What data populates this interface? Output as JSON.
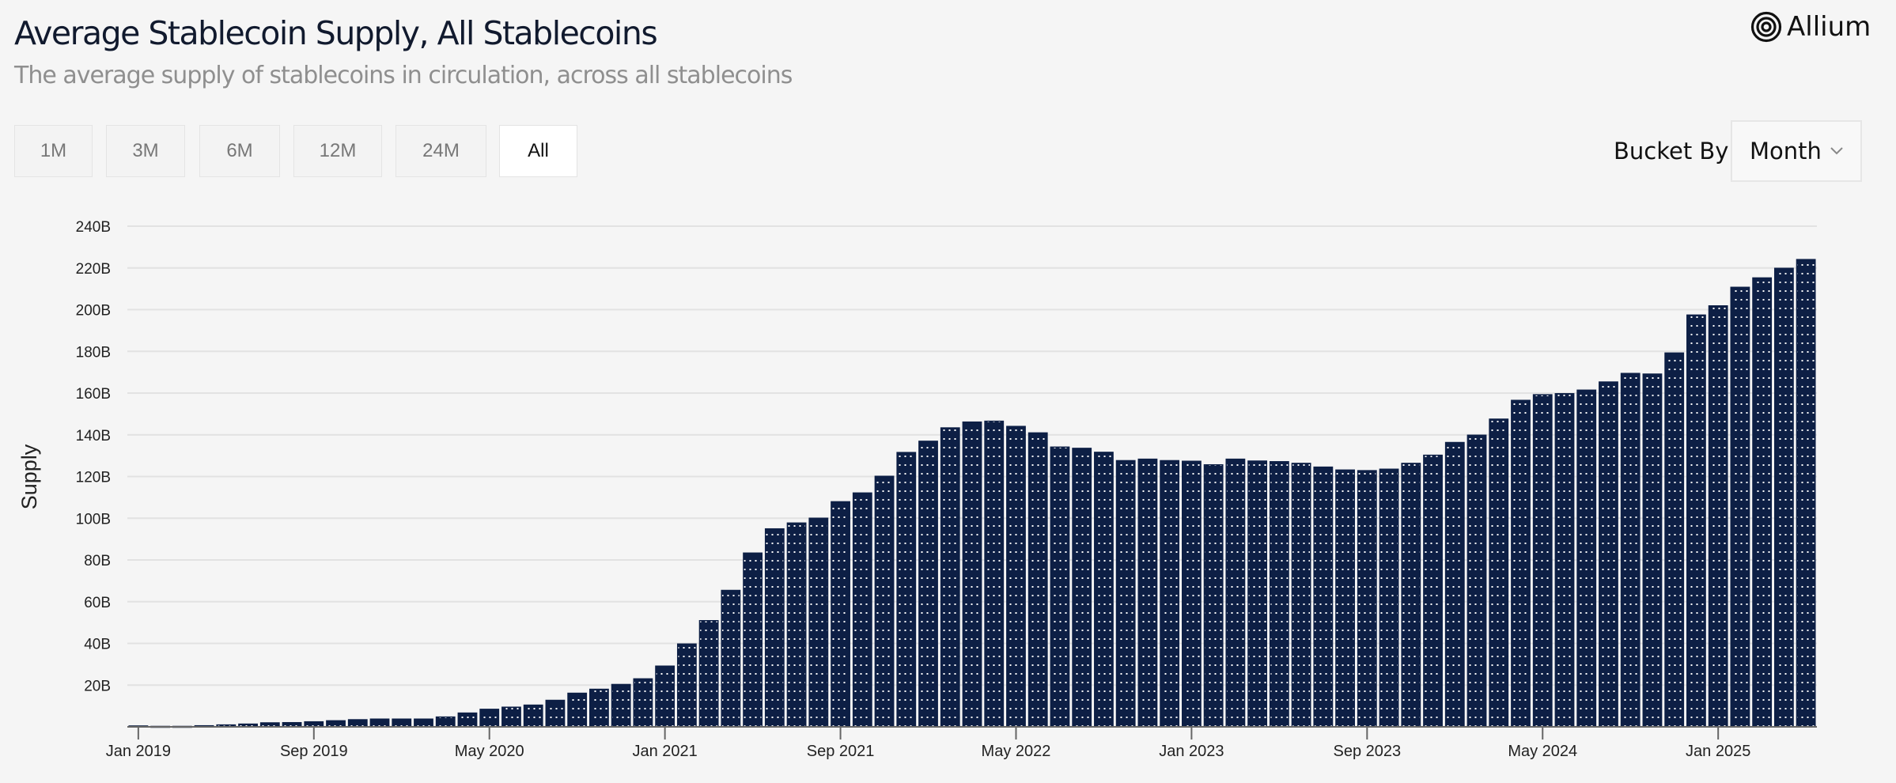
{
  "header": {
    "title": "Average Stablecoin Supply, All Stablecoins",
    "subtitle": "The average supply of stablecoins in circulation, across all stablecoins",
    "logo_text": "Allium"
  },
  "range_buttons": [
    {
      "label": "1M",
      "active": false
    },
    {
      "label": "3M",
      "active": false
    },
    {
      "label": "6M",
      "active": false
    },
    {
      "label": "12M",
      "active": false
    },
    {
      "label": "24M",
      "active": false
    },
    {
      "label": "All",
      "active": true
    }
  ],
  "bucket": {
    "label": "Bucket By",
    "selected": "Month",
    "icon": "chevron-down-icon"
  },
  "colors": {
    "bar": "#0d1f45",
    "background": "#f5f5f5",
    "grid": "#e2e2e2"
  },
  "chart_data": {
    "type": "bar",
    "title": "",
    "xlabel": "",
    "ylabel": "Supply",
    "ylim": [
      0,
      240
    ],
    "yticks": [
      "20B",
      "40B",
      "60B",
      "80B",
      "100B",
      "120B",
      "140B",
      "160B",
      "180B",
      "200B",
      "220B",
      "240B"
    ],
    "ytick_values": [
      20,
      40,
      60,
      80,
      100,
      120,
      140,
      160,
      180,
      200,
      220,
      240
    ],
    "xtick_labels": [
      "Jan 2019",
      "Sep 2019",
      "May 2020",
      "Jan 2021",
      "Sep 2021",
      "May 2022",
      "Jan 2023",
      "Sep 2023",
      "May 2024",
      "Jan 2025"
    ],
    "grid": true,
    "unit": "B",
    "start_month": "Jan 2019",
    "end_month": "May 2025",
    "values": [
      0.4,
      0.2,
      0.2,
      0.5,
      0.9,
      1.3,
      1.9,
      2.0,
      2.4,
      2.9,
      3.4,
      3.7,
      3.7,
      3.7,
      4.7,
      6.6,
      8.4,
      9.4,
      10.4,
      12.7,
      16.1,
      18.0,
      20.3,
      23.0,
      29.1,
      39.7,
      50.9,
      65.4,
      83.3,
      94.9,
      97.7,
      100.0,
      107.9,
      112.1,
      120.1,
      131.5,
      136.9,
      143.3,
      146.1,
      146.5,
      144.0,
      140.9,
      134.1,
      133.5,
      131.6,
      127.6,
      128.3,
      127.6,
      127.3,
      125.6,
      128.3,
      127.4,
      127.1,
      126.3,
      124.5,
      123.1,
      122.8,
      123.5,
      126.3,
      130.2,
      136.3,
      139.8,
      147.5,
      156.5,
      159.2,
      159.7,
      161.4,
      165.3,
      169.4,
      169.1,
      179.2,
      197.4,
      201.8,
      210.7,
      215.2,
      219.8,
      224.0
    ]
  }
}
